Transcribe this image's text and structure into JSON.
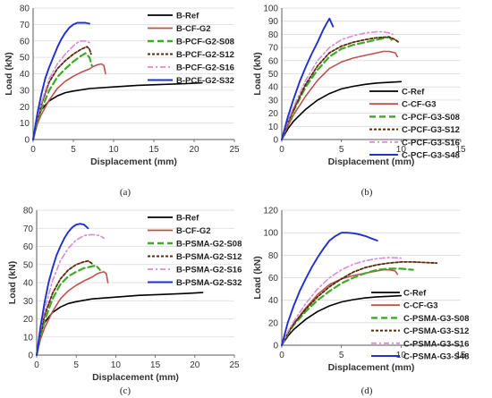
{
  "colors": {
    "ref": "#000000",
    "cf": "#c0504d",
    "s08": "#3caa26",
    "s12": "#5a2a0a",
    "s16": "#d98bd9",
    "s_hi": "#1f2fd0",
    "grid": "#d9d9d9",
    "axis": "#595959"
  },
  "chart_data": [
    {
      "type": "line",
      "caption": "(a)",
      "xlabel": "Displacement (mm)",
      "ylabel": "Load (kN)",
      "xlim": [
        0,
        25
      ],
      "ylim": [
        0,
        80
      ],
      "xticks": [
        0,
        5,
        10,
        15,
        20,
        25
      ],
      "yticks": [
        0,
        10,
        20,
        30,
        40,
        50,
        60,
        70,
        80
      ],
      "grid": "horizontal",
      "legend_placement": "top-right",
      "series": [
        {
          "name": "B-Ref",
          "style": "ref",
          "x": [
            0,
            0.5,
            1,
            2,
            3,
            4,
            5,
            7,
            10,
            13,
            16,
            19,
            21
          ],
          "y": [
            0,
            12,
            18,
            23.5,
            26.5,
            28.5,
            29.5,
            31,
            32,
            33,
            33.5,
            34,
            34.5
          ]
        },
        {
          "name": "B-CF-G2",
          "style": "cf",
          "x": [
            0,
            0.5,
            1,
            2,
            3,
            4,
            5,
            6,
            7,
            7.5,
            8,
            8.5,
            8.8,
            9
          ],
          "y": [
            0,
            9,
            15,
            24,
            31,
            35.5,
            38.5,
            41,
            43,
            44.5,
            45.5,
            46,
            45,
            40
          ]
        },
        {
          "name": "B-PCF-G2-S08",
          "style": "s08",
          "x": [
            0,
            0.5,
            1,
            2,
            3,
            4,
            5,
            6,
            6.5,
            7,
            7.3
          ],
          "y": [
            0,
            10,
            18,
            30,
            38,
            43,
            47.5,
            51,
            52.5,
            50,
            45
          ]
        },
        {
          "name": "B-PCF-G2-S12",
          "style": "s12",
          "x": [
            0,
            0.5,
            1,
            2,
            3,
            4,
            5,
            6,
            6.7,
            7,
            7.2
          ],
          "y": [
            0,
            12,
            21,
            35,
            43,
            48,
            52,
            55,
            56.5,
            55,
            52
          ]
        },
        {
          "name": "B-PCF-G2-S16",
          "style": "s16",
          "x": [
            0,
            0.5,
            1,
            2,
            3,
            4,
            5,
            5.5,
            6,
            6.5,
            7
          ],
          "y": [
            0,
            13,
            22,
            37,
            46,
            52,
            57,
            59,
            60,
            60,
            59
          ]
        },
        {
          "name": "B-PCF-G2-S32",
          "style": "s_hi",
          "x": [
            0,
            0.5,
            1,
            1.5,
            2,
            2.5,
            3,
            3.5,
            4,
            4.5,
            5,
            5.5,
            6,
            6.5,
            7
          ],
          "y": [
            0,
            15,
            27,
            37,
            44,
            50,
            56,
            61,
            65,
            68,
            70,
            71,
            71,
            71,
            70.5
          ]
        }
      ]
    },
    {
      "type": "line",
      "caption": "(b)",
      "xlabel": "Displacement (mm)",
      "ylabel": "Load (kN)",
      "xlim": [
        0,
        15
      ],
      "ylim": [
        0,
        100
      ],
      "xticks": [
        0,
        5,
        10,
        15
      ],
      "yticks": [
        0,
        10,
        20,
        30,
        40,
        50,
        60,
        70,
        80,
        90,
        100
      ],
      "grid": "horizontal",
      "legend_placement": "bottom-right",
      "series": [
        {
          "name": "C-Ref",
          "style": "ref",
          "x": [
            0,
            0.5,
            1,
            2,
            3,
            4,
            5,
            6,
            7,
            8,
            9,
            10
          ],
          "y": [
            0,
            8,
            14,
            23,
            30,
            35,
            38.5,
            40.5,
            42,
            43,
            43.5,
            44
          ]
        },
        {
          "name": "C-CF-G3",
          "style": "cf",
          "x": [
            0,
            0.5,
            1,
            2,
            3,
            4,
            5,
            6,
            7,
            8,
            8.5,
            9,
            9.5,
            9.7
          ],
          "y": [
            0,
            10,
            19,
            33,
            45,
            54,
            59,
            62,
            64,
            66,
            67,
            67,
            66,
            63
          ]
        },
        {
          "name": "C-PCF-G3-S08",
          "style": "s08",
          "x": [
            0,
            0.5,
            1,
            2,
            3,
            4,
            5,
            6,
            7,
            8,
            8.5,
            9,
            9.3
          ],
          "y": [
            0,
            12,
            22,
            40,
            53,
            63,
            69,
            72,
            74,
            76,
            77,
            78,
            75
          ]
        },
        {
          "name": "C-PCF-G3-S12",
          "style": "s12",
          "x": [
            0,
            0.5,
            1,
            2,
            3,
            4,
            5,
            6,
            7,
            8,
            9,
            9.5,
            9.8
          ],
          "y": [
            0,
            13,
            23,
            42,
            56,
            66,
            71,
            74,
            76,
            77.5,
            78,
            76,
            74
          ]
        },
        {
          "name": "C-PCF-G3-S16",
          "style": "s16",
          "x": [
            0,
            0.5,
            1,
            2,
            3,
            4,
            5,
            6,
            7,
            8,
            8.5,
            9,
            9.3
          ],
          "y": [
            0,
            14,
            25,
            45,
            60,
            70,
            76,
            79,
            81,
            82,
            82,
            81,
            80
          ]
        },
        {
          "name": "C-PCF-G3-S48",
          "style": "s_hi",
          "x": [
            0,
            0.5,
            1,
            1.5,
            2,
            2.5,
            3,
            3.5,
            3.8,
            4,
            4.3
          ],
          "y": [
            0,
            17,
            31,
            44,
            55,
            65,
            74,
            84,
            89,
            92,
            86
          ]
        }
      ]
    },
    {
      "type": "line",
      "caption": "(c)",
      "xlabel": "Displacement (mm)",
      "ylabel": "Load (kN)",
      "xlim": [
        0,
        25
      ],
      "ylim": [
        0,
        80
      ],
      "xticks": [
        0,
        5,
        10,
        15,
        20,
        25
      ],
      "yticks": [
        0,
        10,
        20,
        30,
        40,
        50,
        60,
        70,
        80
      ],
      "grid": "horizontal",
      "legend_placement": "top-right",
      "series": [
        {
          "name": "B-Ref",
          "style": "ref",
          "x": [
            0,
            0.5,
            1,
            2,
            3,
            4,
            5,
            7,
            10,
            13,
            16,
            19,
            21
          ],
          "y": [
            0,
            12,
            18,
            23.5,
            26.5,
            28.5,
            29.5,
            31,
            32,
            33,
            33.5,
            34,
            34.5
          ]
        },
        {
          "name": "B-CF-G2",
          "style": "cf",
          "x": [
            0,
            0.5,
            1,
            2,
            3,
            4,
            5,
            6,
            7,
            7.5,
            8,
            8.5,
            8.8,
            9
          ],
          "y": [
            0,
            9,
            15,
            24,
            31,
            35.5,
            38.5,
            41,
            43,
            44.5,
            45.5,
            46,
            45,
            40
          ]
        },
        {
          "name": "B-PSMA-G2-S08",
          "style": "s08",
          "x": [
            0,
            0.5,
            1,
            2,
            3,
            4,
            5,
            6,
            7,
            7.5,
            8
          ],
          "y": [
            0,
            11,
            19,
            31,
            39,
            43.5,
            46,
            48,
            49,
            49.5,
            47
          ]
        },
        {
          "name": "B-PSMA-G2-S12",
          "style": "s12",
          "x": [
            0,
            0.5,
            1,
            2,
            3,
            4,
            5,
            6,
            6.5,
            7
          ],
          "y": [
            0,
            13,
            22,
            34,
            42,
            47,
            50,
            51.5,
            52,
            50.5
          ]
        },
        {
          "name": "B-PSMA-G2-S16",
          "style": "s16",
          "x": [
            0,
            0.5,
            1,
            2,
            3,
            4,
            5,
            6,
            7,
            8,
            8.5
          ],
          "y": [
            0,
            14,
            25,
            41,
            52,
            59,
            63.5,
            66,
            66.5,
            66,
            64.5
          ]
        },
        {
          "name": "B-PSMA-G2-S32",
          "style": "s_hi",
          "x": [
            0,
            0.5,
            1,
            1.5,
            2,
            2.5,
            3,
            3.5,
            4,
            4.5,
            5,
            5.5,
            6,
            6.5
          ],
          "y": [
            0,
            16,
            29,
            40,
            48,
            55,
            60,
            64.5,
            68,
            70.5,
            72,
            72.5,
            72,
            70
          ]
        }
      ]
    },
    {
      "type": "line",
      "caption": "(d)",
      "xlabel": "Displacement (mm)",
      "ylabel": "Load (kN)",
      "xlim": [
        0,
        15
      ],
      "ylim": [
        0,
        120
      ],
      "xticks": [
        0,
        5,
        10,
        15
      ],
      "yticks": [
        0,
        20,
        40,
        60,
        80,
        100,
        120
      ],
      "grid": "horizontal",
      "legend_placement": "bottom-right",
      "series": [
        {
          "name": "C-Ref",
          "style": "ref",
          "x": [
            0,
            0.5,
            1,
            2,
            3,
            4,
            5,
            6,
            7,
            8,
            9,
            10
          ],
          "y": [
            0,
            8,
            14,
            23,
            30,
            35,
            38.5,
            40.5,
            42,
            43,
            43.5,
            44
          ]
        },
        {
          "name": "C-CF-G3",
          "style": "cf",
          "x": [
            0,
            0.5,
            1,
            2,
            3,
            4,
            5,
            6,
            7,
            8,
            8.5,
            9,
            9.5,
            9.7
          ],
          "y": [
            0,
            10,
            19,
            33,
            45,
            54,
            59,
            62,
            64,
            66,
            67,
            67,
            66,
            63
          ]
        },
        {
          "name": "C-PSMA-G3-S08",
          "style": "s08",
          "x": [
            0,
            0.5,
            1,
            2,
            3,
            4,
            5,
            6,
            7,
            8,
            9,
            10,
            11
          ],
          "y": [
            0,
            10,
            18,
            30,
            40,
            48,
            55,
            60,
            64,
            67,
            68,
            68,
            67
          ]
        },
        {
          "name": "C-PSMA-G3-S12",
          "style": "s12",
          "x": [
            0,
            0.5,
            1,
            2,
            3,
            4,
            5,
            6,
            7,
            8,
            9,
            10,
            11,
            12,
            13
          ],
          "y": [
            0,
            11,
            19,
            32,
            43,
            52,
            59,
            65,
            69,
            71.5,
            73,
            74,
            74,
            73.5,
            73
          ]
        },
        {
          "name": "C-PSMA-G3-S16",
          "style": "s16",
          "x": [
            0,
            0.5,
            1,
            2,
            3,
            4,
            5,
            6,
            7,
            8,
            9,
            10
          ],
          "y": [
            0,
            12,
            21,
            37,
            50,
            60,
            67,
            72,
            75,
            77,
            78,
            77.5
          ]
        },
        {
          "name": "C-PSMA-G3-S48",
          "style": "s_hi",
          "x": [
            0,
            0.5,
            1,
            1.5,
            2,
            2.5,
            3,
            3.5,
            4,
            4.5,
            5,
            5.5,
            6,
            6.5,
            7,
            7.5,
            8
          ],
          "y": [
            0,
            20,
            35,
            48,
            59,
            69,
            78,
            86,
            93,
            97,
            100,
            100,
            99.5,
            98.5,
            97,
            95,
            93
          ]
        }
      ]
    }
  ]
}
